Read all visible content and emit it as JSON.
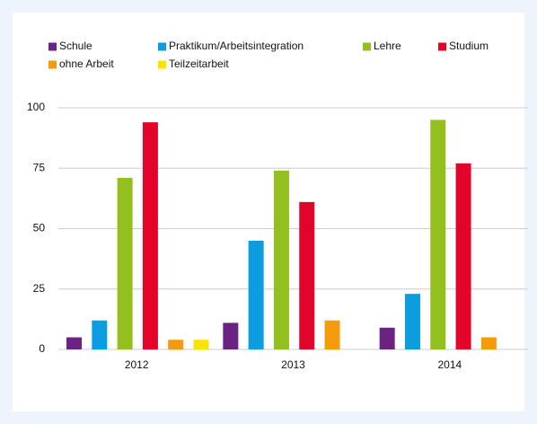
{
  "chart_data": {
    "type": "bar",
    "categories": [
      "2012",
      "2013",
      "2014"
    ],
    "series": [
      {
        "name": "Schule",
        "color": "#6a2283",
        "values": [
          5,
          11,
          9
        ]
      },
      {
        "name": "Praktikum/Arbeitsintegration",
        "color": "#0b9de0",
        "values": [
          12,
          45,
          23
        ]
      },
      {
        "name": "Lehre",
        "color": "#93c01f",
        "values": [
          71,
          74,
          95
        ]
      },
      {
        "name": "Studium",
        "color": "#e3042a",
        "values": [
          94,
          61,
          77
        ]
      },
      {
        "name": "ohne Arbeit",
        "color": "#f39a0d",
        "values": [
          4,
          12,
          5
        ]
      },
      {
        "name": "Teilzeitarbeit",
        "color": "#f7e500",
        "values": [
          4,
          0,
          0
        ]
      }
    ],
    "ylim": [
      0,
      100
    ],
    "yticks": [
      0,
      25,
      50,
      75,
      100
    ],
    "grid": true
  }
}
